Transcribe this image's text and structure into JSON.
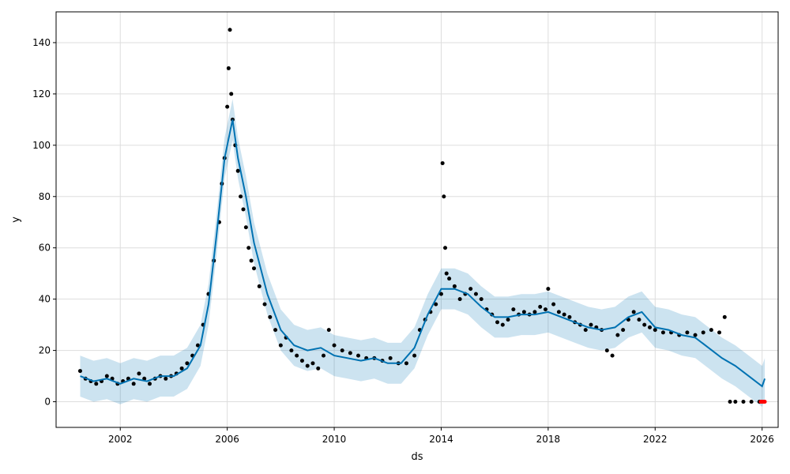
{
  "chart_data": {
    "type": "scatter",
    "title": "",
    "xlabel": "ds",
    "ylabel": "y",
    "xlim": [
      1999.6,
      2026.6
    ],
    "ylim": [
      -10,
      152
    ],
    "grid": true,
    "x_ticks": [
      2002,
      2006,
      2010,
      2014,
      2018,
      2022,
      2026
    ],
    "x_tick_labels": [
      "2002",
      "2006",
      "2010",
      "2014",
      "2018",
      "2022",
      "2026"
    ],
    "y_ticks": [
      0,
      20,
      40,
      60,
      80,
      100,
      120,
      140
    ],
    "y_tick_labels": [
      "0",
      "20",
      "40",
      "60",
      "80",
      "100",
      "120",
      "140"
    ],
    "colors": {
      "observed": "#000000",
      "forecast_line": "#0072B2",
      "uncertainty_band": "#0072B2",
      "highlight": "#ff0000",
      "grid": "#dddddd"
    },
    "series": [
      {
        "kind": "forecast",
        "x": [
          2000.5,
          2001.0,
          2001.5,
          2002.0,
          2002.5,
          2003.0,
          2003.5,
          2004.0,
          2004.5,
          2005.0,
          2005.3,
          2005.6,
          2005.9,
          2006.2,
          2006.4,
          2006.7,
          2007.0,
          2007.5,
          2008.0,
          2008.5,
          2009.0,
          2009.5,
          2010.0,
          2010.5,
          2011.0,
          2011.5,
          2012.0,
          2012.5,
          2013.0,
          2013.5,
          2014.0,
          2014.5,
          2015.0,
          2015.5,
          2016.0,
          2016.5,
          2017.0,
          2017.5,
          2018.0,
          2018.5,
          2019.0,
          2019.5,
          2020.0,
          2020.5,
          2021.0,
          2021.5,
          2022.0,
          2022.5,
          2023.0,
          2023.5,
          2024.0,
          2024.5,
          2025.0,
          2025.5,
          2026.0,
          2026.1
        ],
        "y": [
          10,
          8,
          9,
          7,
          9,
          8,
          10,
          10,
          13,
          22,
          38,
          65,
          95,
          110,
          95,
          80,
          62,
          42,
          28,
          22,
          20,
          21,
          18,
          17,
          16,
          17,
          15,
          15,
          21,
          34,
          44,
          44,
          42,
          37,
          33,
          33,
          34,
          34,
          35,
          33,
          31,
          29,
          28,
          29,
          33,
          35,
          29,
          28,
          26,
          25,
          21,
          17,
          14,
          10,
          6,
          9
        ]
      },
      {
        "kind": "uncertainty",
        "x": [
          2000.5,
          2001.0,
          2001.5,
          2002.0,
          2002.5,
          2003.0,
          2003.5,
          2004.0,
          2004.5,
          2005.0,
          2005.3,
          2005.6,
          2005.9,
          2006.2,
          2006.4,
          2006.7,
          2007.0,
          2007.5,
          2008.0,
          2008.5,
          2009.0,
          2009.5,
          2010.0,
          2010.5,
          2011.0,
          2011.5,
          2012.0,
          2012.5,
          2013.0,
          2013.5,
          2014.0,
          2014.5,
          2015.0,
          2015.5,
          2016.0,
          2016.5,
          2017.0,
          2017.5,
          2018.0,
          2018.5,
          2019.0,
          2019.5,
          2020.0,
          2020.5,
          2021.0,
          2021.5,
          2022.0,
          2022.5,
          2023.0,
          2023.5,
          2024.0,
          2024.5,
          2025.0,
          2025.5,
          2026.0,
          2026.1
        ],
        "lower": [
          2,
          0,
          1,
          -1,
          1,
          0,
          2,
          2,
          5,
          14,
          30,
          57,
          87,
          102,
          87,
          72,
          54,
          34,
          20,
          14,
          12,
          13,
          10,
          9,
          8,
          9,
          7,
          7,
          13,
          26,
          36,
          36,
          34,
          29,
          25,
          25,
          26,
          26,
          27,
          25,
          23,
          21,
          20,
          21,
          25,
          27,
          21,
          20,
          18,
          17,
          13,
          9,
          6,
          2,
          -2,
          1
        ],
        "upper": [
          18,
          16,
          17,
          15,
          17,
          16,
          18,
          18,
          21,
          30,
          46,
          73,
          103,
          118,
          103,
          88,
          70,
          50,
          36,
          30,
          28,
          29,
          26,
          25,
          24,
          25,
          23,
          23,
          29,
          42,
          52,
          52,
          50,
          45,
          41,
          41,
          42,
          42,
          43,
          41,
          39,
          37,
          36,
          37,
          41,
          43,
          37,
          36,
          34,
          33,
          29,
          25,
          22,
          18,
          14,
          17
        ]
      },
      {
        "kind": "observed",
        "x": [
          2000.5,
          2000.7,
          2000.9,
          2001.1,
          2001.3,
          2001.5,
          2001.7,
          2001.9,
          2002.1,
          2002.3,
          2002.5,
          2002.7,
          2002.9,
          2003.1,
          2003.3,
          2003.5,
          2003.7,
          2003.9,
          2004.1,
          2004.3,
          2004.5,
          2004.7,
          2004.9,
          2005.1,
          2005.3,
          2005.5,
          2005.7,
          2005.8,
          2005.9,
          2006.0,
          2006.05,
          2006.1,
          2006.15,
          2006.2,
          2006.3,
          2006.4,
          2006.5,
          2006.6,
          2006.7,
          2006.8,
          2006.9,
          2007.0,
          2007.2,
          2007.4,
          2007.6,
          2007.8,
          2008.0,
          2008.2,
          2008.4,
          2008.6,
          2008.8,
          2009.0,
          2009.2,
          2009.4,
          2009.6,
          2009.8,
          2010.0,
          2010.3,
          2010.6,
          2010.9,
          2011.2,
          2011.5,
          2011.8,
          2012.1,
          2012.4,
          2012.7,
          2013.0,
          2013.2,
          2013.4,
          2013.6,
          2013.8,
          2014.0,
          2014.05,
          2014.1,
          2014.15,
          2014.2,
          2014.3,
          2014.5,
          2014.7,
          2014.9,
          2015.1,
          2015.3,
          2015.5,
          2015.7,
          2015.9,
          2016.1,
          2016.3,
          2016.5,
          2016.7,
          2016.9,
          2017.1,
          2017.3,
          2017.5,
          2017.7,
          2017.9,
          2018.0,
          2018.2,
          2018.4,
          2018.6,
          2018.8,
          2019.0,
          2019.2,
          2019.4,
          2019.6,
          2019.8,
          2020.0,
          2020.2,
          2020.4,
          2020.6,
          2020.8,
          2021.0,
          2021.2,
          2021.4,
          2021.6,
          2021.8,
          2022.0,
          2022.3,
          2022.6,
          2022.9,
          2023.2,
          2023.5,
          2023.8,
          2024.1,
          2024.4,
          2024.6,
          2024.8,
          2025.0,
          2025.3,
          2025.6,
          2025.9
        ],
        "y": [
          12,
          9,
          8,
          7,
          8,
          10,
          9,
          7,
          8,
          9,
          7,
          11,
          9,
          7,
          9,
          10,
          9,
          10,
          11,
          13,
          15,
          18,
          22,
          30,
          42,
          55,
          70,
          85,
          95,
          115,
          130,
          145,
          120,
          110,
          100,
          90,
          80,
          75,
          68,
          60,
          55,
          52,
          45,
          38,
          33,
          28,
          22,
          25,
          20,
          18,
          16,
          14,
          15,
          13,
          18,
          28,
          22,
          20,
          19,
          18,
          17,
          17,
          16,
          17,
          15,
          15,
          18,
          28,
          32,
          35,
          38,
          42,
          93,
          80,
          60,
          50,
          48,
          45,
          40,
          42,
          44,
          42,
          40,
          36,
          34,
          31,
          30,
          32,
          36,
          34,
          35,
          34,
          35,
          37,
          36,
          44,
          38,
          35,
          34,
          33,
          31,
          30,
          28,
          30,
          29,
          28,
          20,
          18,
          26,
          28,
          32,
          35,
          32,
          30,
          29,
          28,
          27,
          27,
          26,
          27,
          26,
          27,
          28,
          27,
          33,
          0,
          0,
          0,
          0,
          0
        ]
      },
      {
        "kind": "highlight",
        "x": [
          2025.95,
          2026.0,
          2026.05,
          2026.1
        ],
        "y": [
          0,
          0,
          0,
          0
        ]
      }
    ]
  }
}
